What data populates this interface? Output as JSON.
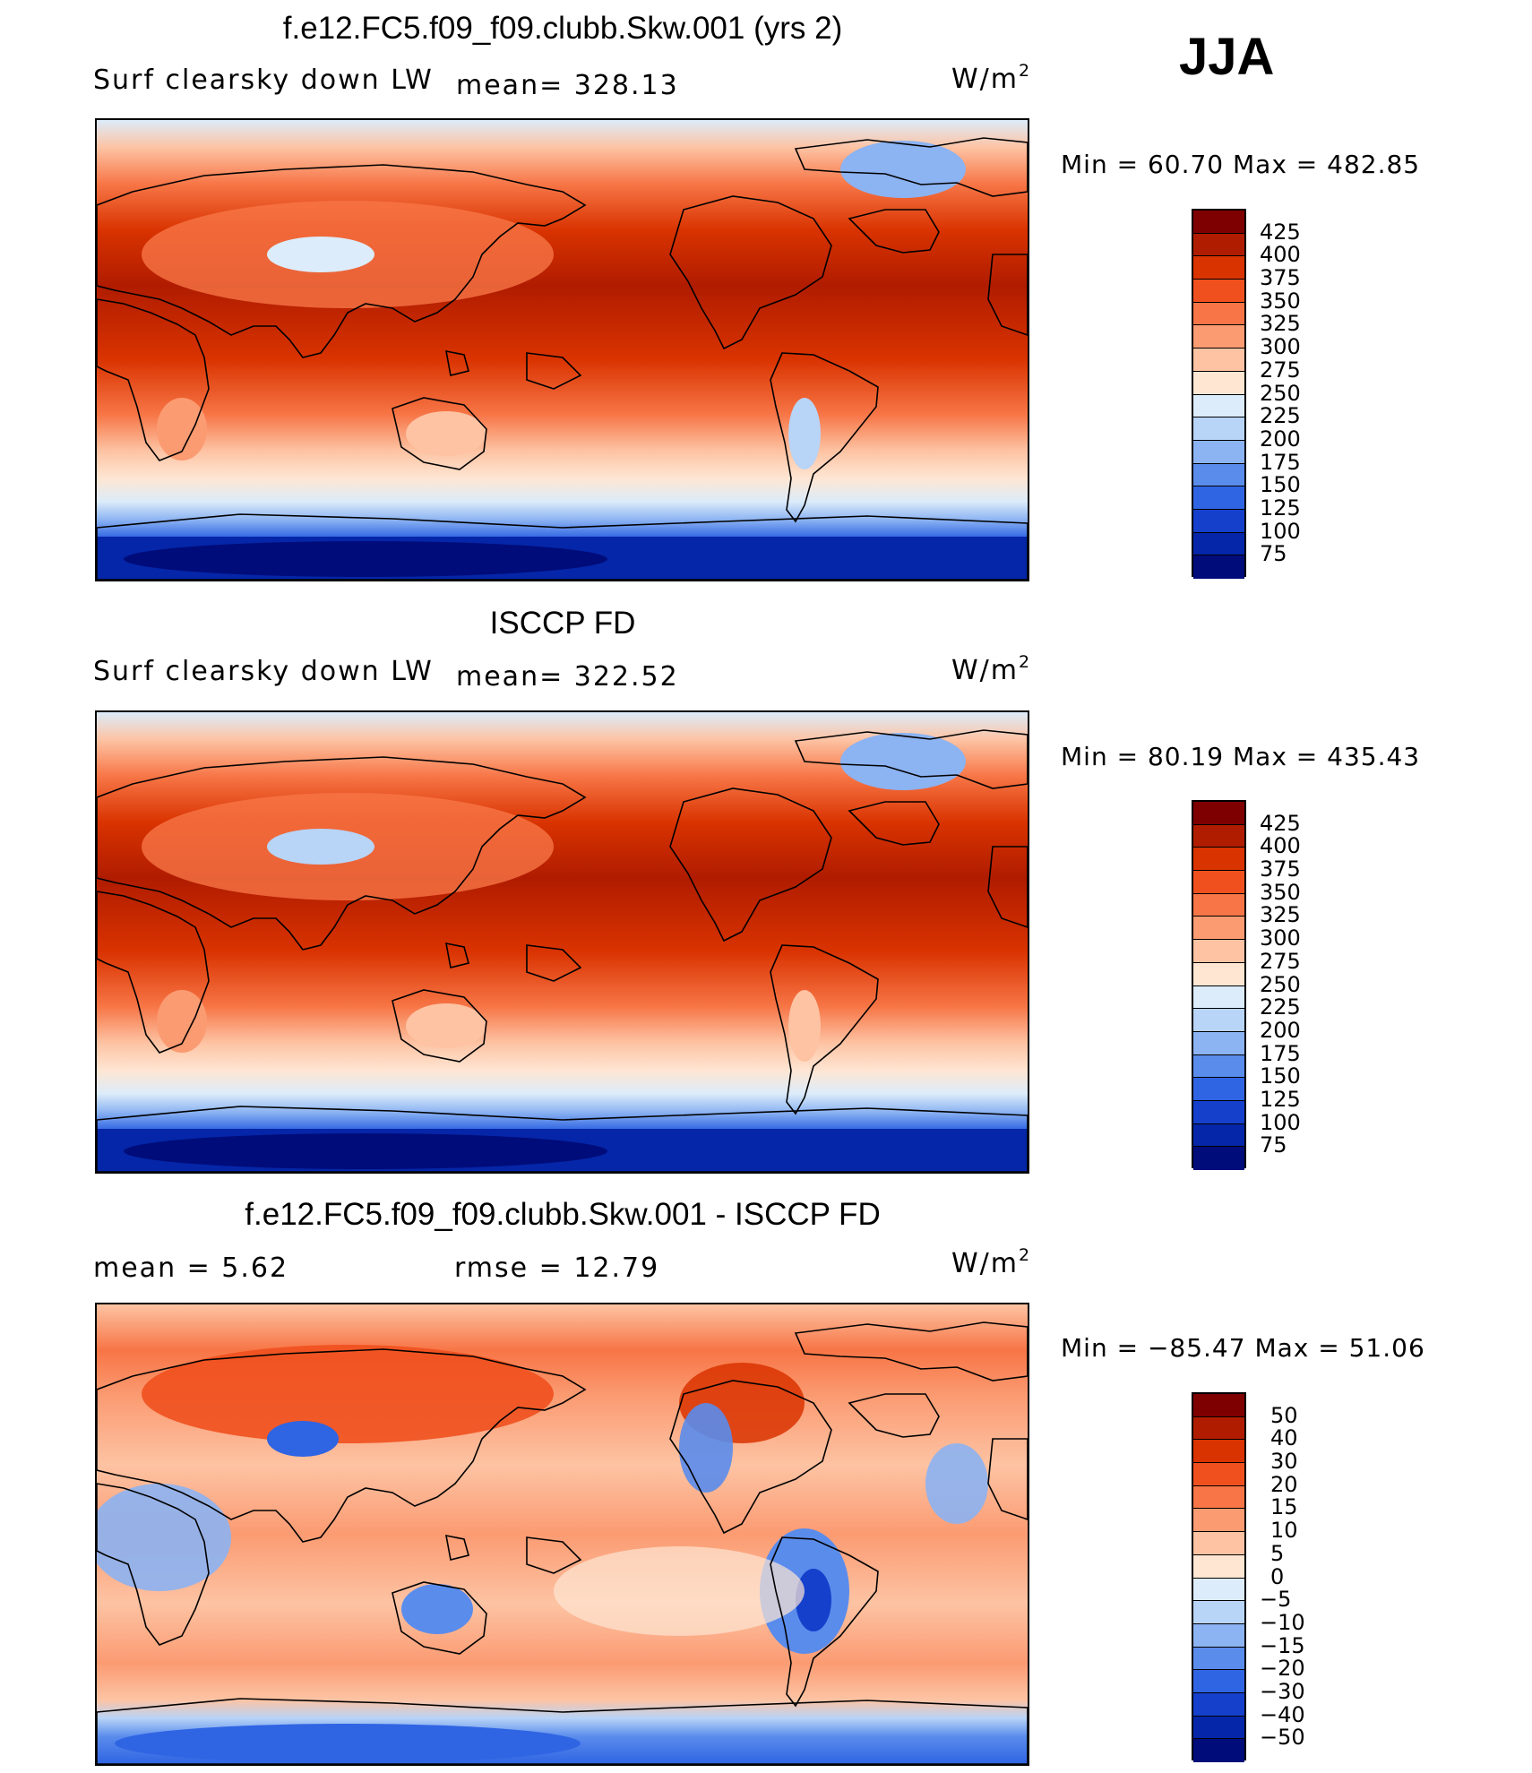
{
  "season": "JJA",
  "panels": [
    {
      "title": "f.e12.FC5.f09_f09.clubb.Skw.001 (yrs 2)",
      "variable": "Surf clearsky down LW",
      "stat": "mean= 328.13",
      "units": "W/m",
      "units_sup": "2",
      "min_max": "Min =   60.70  Max = 482.85",
      "colorbar": {
        "labels": [
          "425",
          "400",
          "375",
          "350",
          "325",
          "300",
          "275",
          "250",
          "225",
          "200",
          "175",
          "150",
          "125",
          "100",
          "75"
        ],
        "colors": [
          "#7f0000",
          "#b01c00",
          "#d93300",
          "#f0501e",
          "#f77546",
          "#fb9b72",
          "#fdc3a3",
          "#fee6d3",
          "#dcecfa",
          "#b8d4f7",
          "#8cb3f2",
          "#5a8cec",
          "#2f64e3",
          "#1540cc",
          "#0526a8",
          "#000c7a"
        ]
      },
      "map_type": "absolute"
    },
    {
      "title": "ISCCP FD",
      "variable": "Surf clearsky down LW",
      "stat": "mean= 322.52",
      "units": "W/m",
      "units_sup": "2",
      "min_max": "Min =   80.19  Max = 435.43",
      "colorbar": {
        "labels": [
          "425",
          "400",
          "375",
          "350",
          "325",
          "300",
          "275",
          "250",
          "225",
          "200",
          "175",
          "150",
          "125",
          "100",
          "75"
        ],
        "colors": [
          "#7f0000",
          "#b01c00",
          "#d93300",
          "#f0501e",
          "#f77546",
          "#fb9b72",
          "#fdc3a3",
          "#fee6d3",
          "#dcecfa",
          "#b8d4f7",
          "#8cb3f2",
          "#5a8cec",
          "#2f64e3",
          "#1540cc",
          "#0526a8",
          "#000c7a"
        ]
      },
      "map_type": "absolute"
    },
    {
      "title": "f.e12.FC5.f09_f09.clubb.Skw.001 - ISCCP FD",
      "stat_left": "mean =     5.62",
      "stat_right": "rmse  =     12.79",
      "units": "W/m",
      "units_sup": "2",
      "min_max": "Min = −85.47  Max =   51.06",
      "colorbar": {
        "labels": [
          "50",
          "40",
          "30",
          "20",
          "15",
          "10",
          "5",
          "0",
          "−5",
          "−10",
          "−15",
          "−20",
          "−30",
          "−40",
          "−50"
        ],
        "colors": [
          "#7f0000",
          "#b01c00",
          "#d93300",
          "#f0501e",
          "#f77546",
          "#fb9b72",
          "#fdc3a3",
          "#fee6d3",
          "#dcecfa",
          "#b8d4f7",
          "#8cb3f2",
          "#5a8cec",
          "#2f64e3",
          "#1540cc",
          "#0526a8",
          "#000c7a"
        ]
      },
      "map_type": "difference"
    }
  ]
}
